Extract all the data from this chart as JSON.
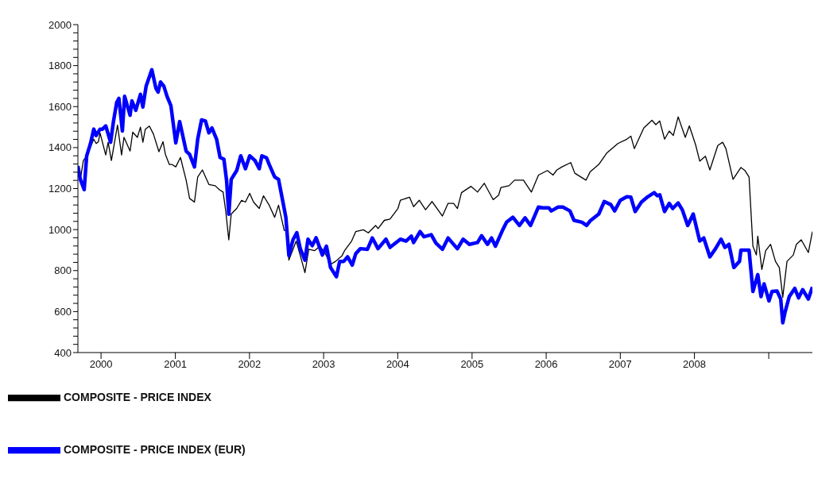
{
  "chart_data": {
    "type": "line",
    "xlim": [
      "1999-09-09",
      "2009-08-04"
    ],
    "xticks": [
      {
        "value": "2000-01-01",
        "label": "2000"
      },
      {
        "value": "2001-01-01",
        "label": "2001"
      },
      {
        "value": "2002-01-01",
        "label": "2002"
      },
      {
        "value": "2003-01-01",
        "label": "2003"
      },
      {
        "value": "2004-01-01",
        "label": "2004"
      },
      {
        "value": "2005-01-01",
        "label": "2005"
      },
      {
        "value": "2006-01-01",
        "label": "2006"
      },
      {
        "value": "2007-01-01",
        "label": "2007"
      },
      {
        "value": "2008-01-01",
        "label": "2008"
      },
      {
        "value": "2009-01-01",
        "label": null
      }
    ],
    "ylim": [
      400,
      2000
    ],
    "yticks": [
      400,
      {
        "value": 440,
        "label": null
      },
      {
        "value": 480,
        "label": null
      },
      {
        "value": 520,
        "label": null
      },
      {
        "value": 560,
        "label": null
      },
      600,
      {
        "value": 640,
        "label": null
      },
      {
        "value": 680,
        "label": null
      },
      {
        "value": 720,
        "label": null
      },
      {
        "value": 760,
        "label": null
      },
      800,
      {
        "value": 840,
        "label": null
      },
      {
        "value": 880,
        "label": null
      },
      {
        "value": 920,
        "label": null
      },
      {
        "value": 960,
        "label": null
      },
      1000,
      {
        "value": 1040,
        "label": null
      },
      {
        "value": 1080,
        "label": null
      },
      {
        "value": 1120,
        "label": null
      },
      {
        "value": 1160,
        "label": null
      },
      1200,
      {
        "value": 1240,
        "label": null
      },
      {
        "value": 1280,
        "label": null
      },
      {
        "value": 1320,
        "label": null
      },
      {
        "value": 1360,
        "label": null
      },
      1400,
      {
        "value": 1440,
        "label": null
      },
      {
        "value": 1480,
        "label": null
      },
      {
        "value": 1520,
        "label": null
      },
      {
        "value": 1560,
        "label": null
      },
      1600,
      {
        "value": 1640,
        "label": null
      },
      {
        "value": 1680,
        "label": null
      },
      {
        "value": 1720,
        "label": null
      },
      {
        "value": 1760,
        "label": null
      },
      1800,
      {
        "value": 1840,
        "label": null
      },
      {
        "value": 1880,
        "label": null
      },
      {
        "value": 1920,
        "label": null
      },
      {
        "value": 1960,
        "label": null
      },
      2000
    ],
    "legend": "bottom left",
    "marker": "none",
    "line_style": "solid",
    "series": [
      {
        "name": "COMPOSITE - PRICE INDEX",
        "color": "#000000",
        "x": [
          "1999-09-09",
          "1999-09-21",
          "1999-10-06",
          "1999-10-22",
          "1999-11-26",
          "1999-12-08",
          "1999-12-19",
          "1999-12-27",
          "2000-01-24",
          "2000-02-05",
          "2000-02-21",
          "2000-03-22",
          "2000-04-11",
          "2000-04-23",
          "2000-05-23",
          "2000-06-05",
          "2000-06-28",
          "2000-07-13",
          "2000-07-25",
          "2000-08-06",
          "2000-08-26",
          "2000-09-15",
          "2000-10-12",
          "2000-11-01",
          "2000-11-13",
          "2000-12-02",
          "2000-12-14",
          "2001-01-03",
          "2001-01-26",
          "2001-02-23",
          "2001-03-12",
          "2001-04-05",
          "2001-04-21",
          "2001-05-14",
          "2001-06-15",
          "2001-07-16",
          "2001-08-05",
          "2001-08-24",
          "2001-09-06",
          "2001-09-21",
          "2001-10-03",
          "2001-10-30",
          "2001-11-23",
          "2001-12-12",
          "2002-01-02",
          "2002-01-21",
          "2002-02-18",
          "2002-03-11",
          "2002-04-08",
          "2002-05-05",
          "2002-05-24",
          "2002-06-21",
          "2002-07-03",
          "2002-07-14",
          "2002-08-19",
          "2002-09-16",
          "2002-10-01",
          "2002-10-20",
          "2002-11-17",
          "2002-12-14",
          "2003-01-07",
          "2003-02-04",
          "2003-03-01",
          "2003-04-02",
          "2003-04-14",
          "2003-05-19",
          "2003-06-08",
          "2003-07-16",
          "2003-08-09",
          "2003-09-14",
          "2003-09-26",
          "2003-10-27",
          "2003-11-24",
          "2004-01-02",
          "2004-01-14",
          "2004-02-28",
          "2004-03-19",
          "2004-04-16",
          "2004-05-17",
          "2004-06-18",
          "2004-08-08",
          "2004-09-05",
          "2004-10-02",
          "2004-10-21",
          "2004-11-10",
          "2004-12-27",
          "2005-01-28",
          "2005-03-02",
          "2005-04-15",
          "2005-05-12",
          "2005-05-23",
          "2005-07-02",
          "2005-07-29",
          "2005-09-11",
          "2005-10-20",
          "2005-11-24",
          "2006-01-07",
          "2006-02-04",
          "2006-02-23",
          "2006-03-20",
          "2006-05-02",
          "2006-05-22",
          "2006-07-16",
          "2006-08-05",
          "2006-09-17",
          "2006-10-26",
          "2006-12-20",
          "2007-02-02",
          "2007-02-22",
          "2007-03-11",
          "2007-04-27",
          "2007-06-06",
          "2007-06-25",
          "2007-07-14",
          "2007-08-07",
          "2007-08-30",
          "2007-09-19",
          "2007-10-13",
          "2007-11-17",
          "2007-12-07",
          "2008-01-07",
          "2008-01-27",
          "2008-02-24",
          "2008-03-17",
          "2008-04-25",
          "2008-05-19",
          "2008-06-04",
          "2008-07-09",
          "2008-08-17",
          "2008-09-06",
          "2008-09-26",
          "2008-10-15",
          "2008-11-01",
          "2008-11-08",
          "2008-11-28",
          "2008-12-17",
          "2009-01-10",
          "2009-02-03",
          "2009-02-22",
          "2009-03-11",
          "2009-04-01",
          "2009-05-02",
          "2009-05-17",
          "2009-06-10",
          "2009-07-15",
          "2009-08-04"
        ],
        "values": [
          1310,
          1245,
          1337,
          1358,
          1441,
          1420,
          1429,
          1472,
          1364,
          1426,
          1337,
          1510,
          1364,
          1450,
          1383,
          1475,
          1450,
          1500,
          1426,
          1490,
          1505,
          1466,
          1380,
          1429,
          1367,
          1318,
          1318,
          1306,
          1352,
          1241,
          1152,
          1134,
          1257,
          1291,
          1220,
          1214,
          1195,
          1183,
          1091,
          950,
          1076,
          1103,
          1143,
          1134,
          1177,
          1134,
          1103,
          1165,
          1119,
          1060,
          1119,
          996,
          996,
          851,
          944,
          845,
          790,
          904,
          897,
          919,
          888,
          830,
          845,
          873,
          897,
          944,
          990,
          999,
          984,
          1020,
          1005,
          1045,
          1051,
          1103,
          1143,
          1158,
          1112,
          1143,
          1097,
          1137,
          1066,
          1128,
          1128,
          1103,
          1180,
          1211,
          1183,
          1226,
          1146,
          1168,
          1205,
          1214,
          1241,
          1241,
          1183,
          1266,
          1288,
          1266,
          1291,
          1306,
          1327,
          1275,
          1241,
          1281,
          1318,
          1373,
          1420,
          1441,
          1456,
          1395,
          1496,
          1533,
          1512,
          1530,
          1441,
          1481,
          1459,
          1550,
          1450,
          1506,
          1413,
          1334,
          1358,
          1291,
          1410,
          1426,
          1395,
          1245,
          1303,
          1288,
          1257,
          919,
          876,
          968,
          805,
          897,
          928,
          845,
          815,
          670,
          845,
          876,
          928,
          950,
          888,
          990
        ]
      },
      {
        "name": "COMPOSITE - PRICE INDEX (EUR)",
        "color": "#0000ff",
        "x": [
          "1999-09-09",
          "1999-09-21",
          "1999-10-10",
          "1999-10-22",
          "1999-11-10",
          "1999-11-26",
          "1999-12-08",
          "1999-12-27",
          "2000-01-08",
          "2000-01-24",
          "2000-02-17",
          "2000-03-02",
          "2000-03-18",
          "2000-03-29",
          "2000-04-15",
          "2000-04-26",
          "2000-05-23",
          "2000-06-01",
          "2000-06-20",
          "2000-07-13",
          "2000-07-25",
          "2000-08-10",
          "2000-09-07",
          "2000-09-27",
          "2000-10-08",
          "2000-10-20",
          "2000-11-05",
          "2000-11-21",
          "2000-12-10",
          "2001-01-03",
          "2001-01-22",
          "2001-02-23",
          "2001-03-12",
          "2001-04-05",
          "2001-04-21",
          "2001-05-10",
          "2001-05-29",
          "2001-06-15",
          "2001-06-30",
          "2001-07-23",
          "2001-08-09",
          "2001-08-28",
          "2001-09-10",
          "2001-09-21",
          "2001-10-03",
          "2001-10-30",
          "2001-11-19",
          "2001-12-12",
          "2002-01-02",
          "2002-01-28",
          "2002-02-18",
          "2002-03-03",
          "2002-03-26",
          "2002-04-08",
          "2002-05-05",
          "2002-05-24",
          "2002-06-13",
          "2002-06-29",
          "2002-07-14",
          "2002-08-03",
          "2002-08-22",
          "2002-09-08",
          "2002-10-01",
          "2002-10-16",
          "2002-11-06",
          "2002-11-25",
          "2002-12-26",
          "2003-01-15",
          "2003-02-04",
          "2003-03-05",
          "2003-03-21",
          "2003-04-10",
          "2003-04-29",
          "2003-05-22",
          "2003-06-08",
          "2003-07-01",
          "2003-08-05",
          "2003-08-29",
          "2003-09-26",
          "2003-11-04",
          "2003-11-24",
          "2004-01-14",
          "2004-02-11",
          "2004-03-08",
          "2004-03-19",
          "2004-04-20",
          "2004-05-09",
          "2004-06-14",
          "2004-07-07",
          "2004-08-08",
          "2004-09-05",
          "2004-09-24",
          "2004-10-21",
          "2004-11-18",
          "2004-12-19",
          "2005-01-28",
          "2005-02-17",
          "2005-03-18",
          "2005-04-07",
          "2005-04-26",
          "2005-06-01",
          "2005-06-20",
          "2005-07-21",
          "2005-08-22",
          "2005-09-19",
          "2005-10-16",
          "2005-11-24",
          "2005-12-14",
          "2006-01-14",
          "2006-01-26",
          "2006-03-01",
          "2006-03-24",
          "2006-04-28",
          "2006-05-18",
          "2006-06-26",
          "2006-07-19",
          "2006-08-05",
          "2006-09-17",
          "2006-10-14",
          "2006-11-15",
          "2006-12-04",
          "2007-01-01",
          "2007-02-02",
          "2007-02-22",
          "2007-03-15",
          "2007-04-15",
          "2007-05-16",
          "2007-06-17",
          "2007-07-02",
          "2007-07-14",
          "2007-08-07",
          "2007-08-30",
          "2007-09-16",
          "2007-10-13",
          "2007-11-02",
          "2007-11-29",
          "2007-12-26",
          "2008-01-27",
          "2008-02-16",
          "2008-03-17",
          "2008-04-14",
          "2008-05-11",
          "2008-05-30",
          "2008-06-19",
          "2008-07-13",
          "2008-08-10",
          "2008-08-17",
          "2008-09-26",
          "2008-10-15",
          "2008-11-08",
          "2008-11-24",
          "2008-12-09",
          "2009-01-02",
          "2009-01-17",
          "2009-02-11",
          "2009-03-01",
          "2009-03-11",
          "2009-03-23",
          "2009-04-12",
          "2009-05-09",
          "2009-05-28",
          "2009-06-17",
          "2009-07-15",
          "2009-08-04"
        ],
        "values": [
          1310,
          1245,
          1195,
          1358,
          1420,
          1490,
          1459,
          1490,
          1490,
          1506,
          1426,
          1527,
          1620,
          1640,
          1481,
          1650,
          1558,
          1628,
          1582,
          1660,
          1598,
          1700,
          1780,
          1690,
          1671,
          1720,
          1700,
          1650,
          1604,
          1423,
          1527,
          1383,
          1367,
          1306,
          1441,
          1535,
          1530,
          1472,
          1496,
          1441,
          1352,
          1343,
          1241,
          1075,
          1245,
          1288,
          1360,
          1297,
          1360,
          1337,
          1297,
          1360,
          1350,
          1318,
          1257,
          1245,
          1143,
          1060,
          873,
          950,
          985,
          907,
          851,
          953,
          922,
          960,
          876,
          919,
          815,
          770,
          845,
          845,
          867,
          827,
          882,
          907,
          904,
          959,
          907,
          953,
          913,
          953,
          944,
          968,
          937,
          990,
          965,
          975,
          934,
          904,
          959,
          937,
          907,
          953,
          928,
          937,
          970,
          928,
          959,
          919,
          999,
          1036,
          1060,
          1020,
          1057,
          1020,
          1110,
          1106,
          1106,
          1091,
          1110,
          1110,
          1091,
          1045,
          1036,
          1020,
          1042,
          1076,
          1137,
          1122,
          1091,
          1143,
          1160,
          1158,
          1088,
          1134,
          1160,
          1180,
          1165,
          1170,
          1088,
          1128,
          1103,
          1130,
          1097,
          1020,
          1076,
          944,
          959,
          867,
          907,
          953,
          913,
          928,
          815,
          845,
          900,
          900,
          698,
          780,
          673,
          735,
          652,
          698,
          700,
          661,
          545,
          600,
          673,
          713,
          667,
          707,
          661,
          720
        ]
      }
    ]
  }
}
